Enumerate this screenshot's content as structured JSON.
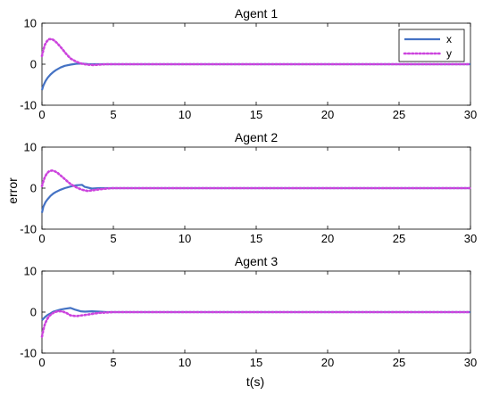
{
  "chart_data": {
    "type": "line",
    "xlabel": "t(s)",
    "ylabel": "error",
    "xlim": [
      0,
      30
    ],
    "ylim": [
      -10,
      10
    ],
    "xticks": [
      "0",
      "5",
      "10",
      "15",
      "20",
      "25",
      "30"
    ],
    "yticks": [
      "10",
      "0",
      "-10"
    ],
    "grid": false,
    "legend": {
      "placement": "top-right",
      "entries": [
        "x",
        "y"
      ]
    },
    "series_colors": {
      "x": "#4472c4",
      "y": "#cc44dd"
    },
    "panels": [
      {
        "title": "Agent 1",
        "series": [
          {
            "name": "x",
            "x": [
              0,
              0.1,
              0.25,
              0.4,
              0.6,
              0.8,
              1.0,
              1.3,
              1.6,
              2.0,
              2.4,
              2.8,
              3.2,
              4.0,
              5.0,
              30
            ],
            "y": [
              -6.3,
              -5.2,
              -4.1,
              -3.3,
              -2.5,
              -1.9,
              -1.4,
              -0.8,
              -0.4,
              -0.1,
              0.1,
              0.15,
              0.05,
              0,
              0,
              0
            ]
          },
          {
            "name": "y",
            "x": [
              0,
              0.1,
              0.2,
              0.35,
              0.5,
              0.7,
              0.9,
              1.1,
              1.4,
              1.7,
              2.0,
              2.4,
              2.8,
              3.2,
              3.6,
              4.0,
              4.5,
              5.0,
              30
            ],
            "y": [
              2.0,
              3.5,
              4.7,
              5.6,
              6.1,
              6.1,
              5.7,
              5.0,
              3.8,
              2.5,
              1.4,
              0.6,
              0.1,
              -0.1,
              -0.2,
              -0.1,
              0,
              0,
              0
            ]
          }
        ]
      },
      {
        "title": "Agent 2",
        "series": [
          {
            "name": "x",
            "x": [
              0,
              0.1,
              0.25,
              0.4,
              0.6,
              0.8,
              1.0,
              1.3,
              1.6,
              2.0,
              2.4,
              2.8,
              3.0,
              3.5,
              4.0,
              5.0,
              30
            ],
            "y": [
              -6.0,
              -4.5,
              -3.4,
              -2.7,
              -1.9,
              -1.3,
              -0.9,
              -0.4,
              0,
              0.4,
              0.7,
              0.8,
              0.3,
              -0.1,
              0,
              0,
              0
            ]
          },
          {
            "name": "y",
            "x": [
              0,
              0.1,
              0.2,
              0.35,
              0.5,
              0.7,
              0.9,
              1.1,
              1.4,
              1.7,
              2.0,
              2.4,
              2.8,
              3.2,
              3.6,
              4.0,
              4.5,
              5.0,
              30
            ],
            "y": [
              0.5,
              1.7,
              2.7,
              3.6,
              4.1,
              4.3,
              4.1,
              3.7,
              2.8,
              1.9,
              1.0,
              0.2,
              -0.4,
              -0.7,
              -0.5,
              -0.3,
              -0.1,
              0,
              0
            ]
          }
        ]
      },
      {
        "title": "Agent 3",
        "series": [
          {
            "name": "x",
            "x": [
              0,
              0.1,
              0.25,
              0.4,
              0.6,
              0.8,
              1.0,
              1.3,
              1.6,
              2.0,
              2.3,
              2.7,
              3.0,
              3.5,
              4.0,
              4.5,
              5.0,
              30
            ],
            "y": [
              -2.0,
              -1.6,
              -1.1,
              -0.7,
              -0.3,
              0.1,
              0.3,
              0.6,
              0.8,
              1.0,
              0.6,
              0.2,
              0.1,
              0.2,
              0.1,
              0,
              0,
              0
            ]
          },
          {
            "name": "y",
            "x": [
              0,
              0.1,
              0.2,
              0.35,
              0.5,
              0.7,
              0.9,
              1.1,
              1.4,
              1.7,
              2.0,
              2.4,
              2.8,
              3.2,
              3.6,
              4.0,
              4.5,
              5.0,
              30
            ],
            "y": [
              -6.0,
              -4.3,
              -3.0,
              -1.8,
              -1.0,
              -0.4,
              0,
              0.2,
              0.2,
              -0.2,
              -0.8,
              -1.0,
              -0.8,
              -0.6,
              -0.4,
              -0.2,
              -0.1,
              0,
              0
            ]
          }
        ]
      }
    ]
  }
}
